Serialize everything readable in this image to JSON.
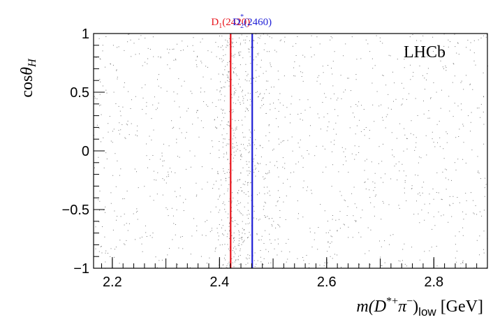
{
  "chart_data": {
    "type": "scatter",
    "title": "",
    "xlabel": "m(D*+π−)low [GeV]",
    "xlabel_parts": {
      "m": "m",
      "open": "(D",
      "sup": "*+",
      "pi": "π",
      "pisup": "−",
      "close": ")",
      "sub": "low",
      "unit": " [GeV]"
    },
    "ylabel": "cosθH",
    "ylabel_parts": {
      "cos": "cos",
      "theta": "θ",
      "sub": "H"
    },
    "xlim": [
      2.165,
      2.9
    ],
    "ylim": [
      -1,
      1
    ],
    "x_ticks": [
      {
        "value": 2.2,
        "label": "2.2"
      },
      {
        "value": 2.4,
        "label": "2.4"
      },
      {
        "value": 2.6,
        "label": "2.6"
      },
      {
        "value": 2.8,
        "label": "2.8"
      }
    ],
    "y_ticks": [
      {
        "value": 1,
        "label": "1"
      },
      {
        "value": 0.5,
        "label": "0.5"
      },
      {
        "value": 0,
        "label": "0"
      },
      {
        "value": -0.5,
        "label": "−0.5"
      },
      {
        "value": -1,
        "label": "−1"
      }
    ],
    "grid": false,
    "reference_lines": [
      {
        "x": 2.4208,
        "color": "#e8141c",
        "label_main": "D",
        "label_sub": "1",
        "label_sup": "",
        "label_tail": "(2420)"
      },
      {
        "x": 2.4611,
        "color": "#1f1fd6",
        "label_main": "D",
        "label_sub": "2",
        "label_sup": "*",
        "label_tail": "(2460)"
      }
    ],
    "density_model": {
      "background_level": 1.0,
      "peaks": [
        {
          "center": 2.421,
          "width": 0.014,
          "amplitude": 5.0
        },
        {
          "center": 2.462,
          "width": 0.022,
          "amplitude": 2.3
        }
      ],
      "point_count": 26000
    },
    "annotation": "LHCb"
  },
  "colors": {
    "points": "#000000",
    "axis": "#000000",
    "background": "#ffffff"
  }
}
